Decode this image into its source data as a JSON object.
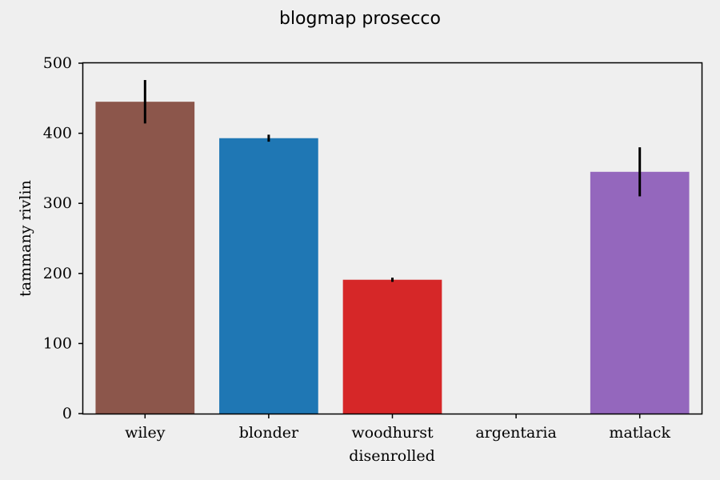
{
  "chart_data": {
    "type": "bar",
    "title": "blogmap prosecco",
    "xlabel": "disenrolled",
    "ylabel": "tammany rivlin",
    "categories": [
      "wiley",
      "blonder",
      "woodhurst",
      "argentaria",
      "matlack"
    ],
    "values": [
      445,
      393,
      191,
      0,
      345
    ],
    "errors": [
      31,
      5,
      3,
      0,
      35
    ],
    "colors": [
      "#8c564b",
      "#1f77b4",
      "#d62728",
      "#ff7f0e",
      "#9467bd"
    ],
    "ylim": [
      0,
      500
    ],
    "yticks": [
      0,
      100,
      200,
      300,
      400,
      500
    ],
    "grid": false
  }
}
